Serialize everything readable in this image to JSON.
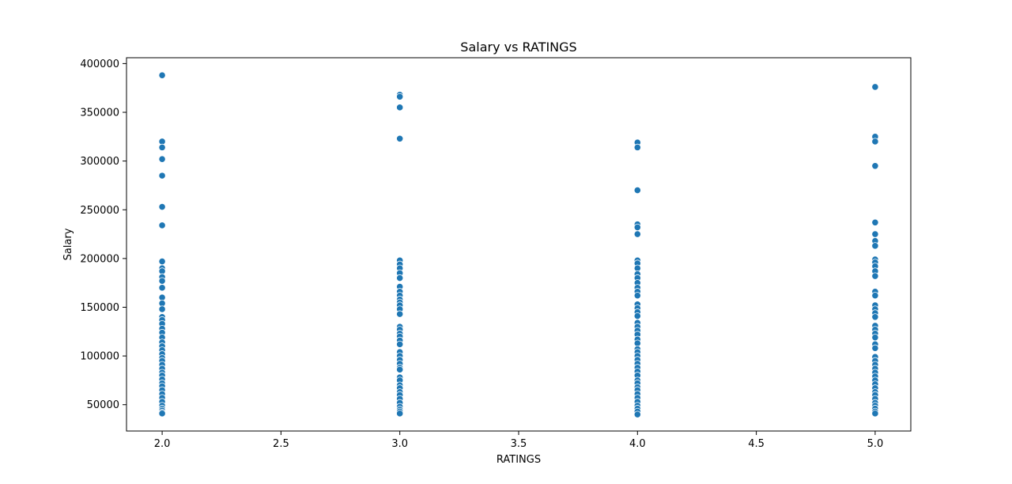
{
  "chart_data": {
    "type": "scatter",
    "title": "Salary vs RATINGS",
    "xlabel": "RATINGS",
    "ylabel": "Salary",
    "xlim": [
      1.85,
      5.15
    ],
    "ylim": [
      23000,
      406000
    ],
    "xticks": [
      2.0,
      2.5,
      3.0,
      3.5,
      4.0,
      4.5,
      5.0
    ],
    "xtick_labels": [
      "2.0",
      "2.5",
      "3.0",
      "3.5",
      "4.0",
      "4.5",
      "5.0"
    ],
    "yticks": [
      50000,
      100000,
      150000,
      200000,
      250000,
      300000,
      350000,
      400000
    ],
    "ytick_labels": [
      "50000",
      "100000",
      "150000",
      "200000",
      "250000",
      "300000",
      "350000",
      "400000"
    ],
    "grid": false,
    "marker_color": "#1f77b4",
    "series": [
      {
        "x": 2.0,
        "y": [
          388000,
          320000,
          314000,
          302000,
          285000,
          253000,
          234000,
          197000,
          190000,
          187000,
          181000,
          177000,
          170000,
          160000,
          154000,
          148000,
          140000,
          137000,
          133000,
          128000,
          124000,
          119000,
          114000,
          110000,
          106000,
          102000,
          98000,
          95000,
          91000,
          87000,
          83000,
          80000,
          76000,
          72000,
          69000,
          65000,
          61000,
          57000,
          53000,
          49000,
          46000,
          44000,
          42000,
          41000
        ]
      },
      {
        "x": 3.0,
        "y": [
          368000,
          366000,
          355000,
          323000,
          198000,
          194000,
          190000,
          185000,
          180000,
          171000,
          166000,
          162000,
          158000,
          155000,
          152000,
          148000,
          143000,
          130000,
          127000,
          123000,
          120000,
          116000,
          112000,
          104000,
          100000,
          96000,
          92000,
          88000,
          86000,
          78000,
          75000,
          70000,
          67000,
          63000,
          60000,
          56000,
          52000,
          48000,
          45000,
          43000,
          41000
        ]
      },
      {
        "x": 4.0,
        "y": [
          319000,
          314000,
          270000,
          235000,
          232000,
          225000,
          198000,
          195000,
          190000,
          184000,
          180000,
          175000,
          170000,
          166000,
          162000,
          153000,
          149000,
          145000,
          141000,
          134000,
          130000,
          126000,
          122000,
          117000,
          113000,
          107000,
          104000,
          100000,
          96000,
          92000,
          88000,
          84000,
          80000,
          75000,
          72000,
          68000,
          65000,
          61000,
          57000,
          53000,
          49000,
          46000,
          43000,
          40000
        ]
      },
      {
        "x": 5.0,
        "y": [
          376000,
          325000,
          320000,
          295000,
          237000,
          225000,
          218000,
          213000,
          199000,
          196000,
          192000,
          187000,
          182000,
          166000,
          162000,
          152000,
          148000,
          144000,
          140000,
          131000,
          127000,
          123000,
          119000,
          112000,
          108000,
          99000,
          95000,
          91000,
          87000,
          83000,
          79000,
          75000,
          71000,
          67000,
          63000,
          60000,
          56000,
          52000,
          49000,
          46000,
          43000,
          41000
        ]
      }
    ]
  }
}
